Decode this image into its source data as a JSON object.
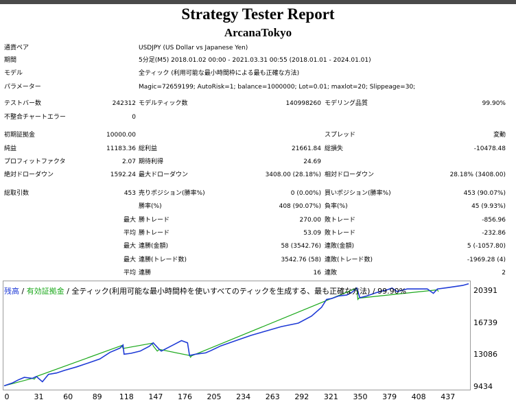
{
  "report": {
    "title": "Strategy Tester Report",
    "subtitle": "ArcanaTokyo"
  },
  "info": [
    {
      "label": "通貨ペア",
      "value": "USDJPY (US Dollar vs Japanese Yen)"
    },
    {
      "label": "期間",
      "value": "5分足(M5) 2018.01.02 00:00 - 2021.03.31 00:55 (2018.01.01 - 2024.01.01)"
    },
    {
      "label": "モデル",
      "value": "全ティック (利用可能な最小時間枠による最も正確な方法)"
    },
    {
      "label": "パラメーター",
      "value": "Magic=72659199; AutoRisk=1; balance=1000000; Lot=0.01; maxlot=20; Slippeage=30;"
    }
  ],
  "stats": {
    "test_bars_label": "テストバー数",
    "test_bars": "242312",
    "model_ticks_label": "モデルティック数",
    "model_ticks": "140998260",
    "model_quality_label": "モデリング品質",
    "model_quality": "99.90%",
    "mismatch_label": "不整合チャートエラー",
    "mismatch": "0",
    "initial_deposit_label": "初期証拠金",
    "initial_deposit": "10000.00",
    "spread_label": "スプレッド",
    "spread": "変動",
    "net_profit_label": "純益",
    "net_profit": "11183.36",
    "gross_profit_label": "総利益",
    "gross_profit": "21661.84",
    "gross_loss_label": "総損失",
    "gross_loss": "-10478.48",
    "profit_factor_label": "プロフィットファクタ",
    "profit_factor": "2.07",
    "expected_payoff_label": "期待利得",
    "expected_payoff": "24.69",
    "abs_dd_label": "絶対ドローダウン",
    "abs_dd": "1592.24",
    "max_dd_label": "最大ドローダウン",
    "max_dd": "3408.00 (28.18%)",
    "rel_dd_label": "相対ドローダウン",
    "rel_dd": "28.18% (3408.00)",
    "total_trades_label": "総取引数",
    "total_trades": "453",
    "short_label": "売りポジション(勝率%)",
    "short": "0 (0.00%)",
    "long_label": "買いポジション(勝率%)",
    "long": "453 (90.07%)",
    "win_rate_label": "勝率(%)",
    "win_rate": "408 (90.07%)",
    "loss_rate_label": "負率(%)",
    "loss_rate": "45 (9.93%)",
    "max_label": "最大",
    "avg_label": "平均",
    "largest_win_label": "勝トレード",
    "largest_win": "270.00",
    "largest_loss_label": "敗トレード",
    "largest_loss": "-856.96",
    "avg_win_label": "勝トレード",
    "avg_win": "53.09",
    "avg_loss_label": "敗トレード",
    "avg_loss": "-232.86",
    "max_consec_wins_label": "連勝(金額)",
    "max_consec_wins": "58 (3542.76)",
    "max_consec_losses_label": "連敗(金額)",
    "max_consec_losses": "5 (-1057.80)",
    "max_consec_profit_label": "連勝(トレード数)",
    "max_consec_profit": "3542.76 (58)",
    "max_consec_loss_label": "連敗(トレード数)",
    "max_consec_loss": "-1969.28 (4)",
    "avg_consec_wins_label": "連勝",
    "avg_consec_wins": "16",
    "avg_consec_losses_label": "連敗",
    "avg_consec_losses": "2"
  },
  "chart_legend": {
    "balance": "残高",
    "sep1": " / ",
    "equity": "有効証拠金",
    "rest": " / 全ティック(利用可能な最小時間枠を使いすべてのティックを生成する、最も正確な方法) / 99.90%"
  },
  "colors": {
    "balance": "#1e3ad6",
    "equity": "#1aa81a"
  },
  "chart_data": {
    "type": "line",
    "x_ticks": [
      0,
      31,
      60,
      89,
      118,
      147,
      176,
      205,
      234,
      263,
      292,
      321,
      350,
      379,
      408,
      437
    ],
    "y_ticks": [
      "20391",
      "16739",
      "13086",
      "9434"
    ],
    "ylim": [
      9434,
      21500
    ],
    "xlim": [
      0,
      461
    ],
    "series": [
      {
        "name": "残高",
        "x": [
          0,
          8,
          14,
          20,
          28,
          32,
          38,
          44,
          52,
          60,
          72,
          85,
          95,
          105,
          115,
          118,
          119,
          126,
          135,
          144,
          148,
          154,
          156,
          166,
          176,
          182,
          184,
          190,
          200,
          205,
          215,
          230,
          245,
          260,
          275,
          292,
          305,
          315,
          320,
          325,
          332,
          340,
          345,
          348,
          350,
          353,
          360,
          370,
          380,
          385,
          390,
          400,
          420,
          426,
          430,
          440,
          455,
          461
        ],
        "y": [
          9640,
          9950,
          10310,
          10600,
          10480,
          10700,
          10100,
          10950,
          11100,
          11400,
          11800,
          12300,
          12700,
          13450,
          13950,
          14300,
          13250,
          13350,
          13600,
          14150,
          14550,
          13800,
          13600,
          14200,
          14800,
          14550,
          13100,
          13250,
          13400,
          13650,
          14200,
          14800,
          15400,
          15900,
          16400,
          16800,
          17600,
          18600,
          19500,
          19600,
          19900,
          20000,
          20300,
          20600,
          20800,
          19700,
          19900,
          20300,
          20600,
          20800,
          20400,
          20700,
          20700,
          20200,
          20700,
          20850,
          21100,
          21300
        ]
      },
      {
        "name": "有効証拠金",
        "x": [
          0,
          28,
          30,
          32,
          117,
          118,
          147,
          148,
          152,
          154,
          184,
          185,
          186,
          350,
          351,
          352,
          430,
          431
        ],
        "y": [
          9640,
          10480,
          10400,
          10700,
          14250,
          13900,
          14500,
          14200,
          13600,
          13800,
          13100,
          12900,
          13050,
          20800,
          19500,
          19650,
          20600,
          20400
        ]
      }
    ]
  }
}
